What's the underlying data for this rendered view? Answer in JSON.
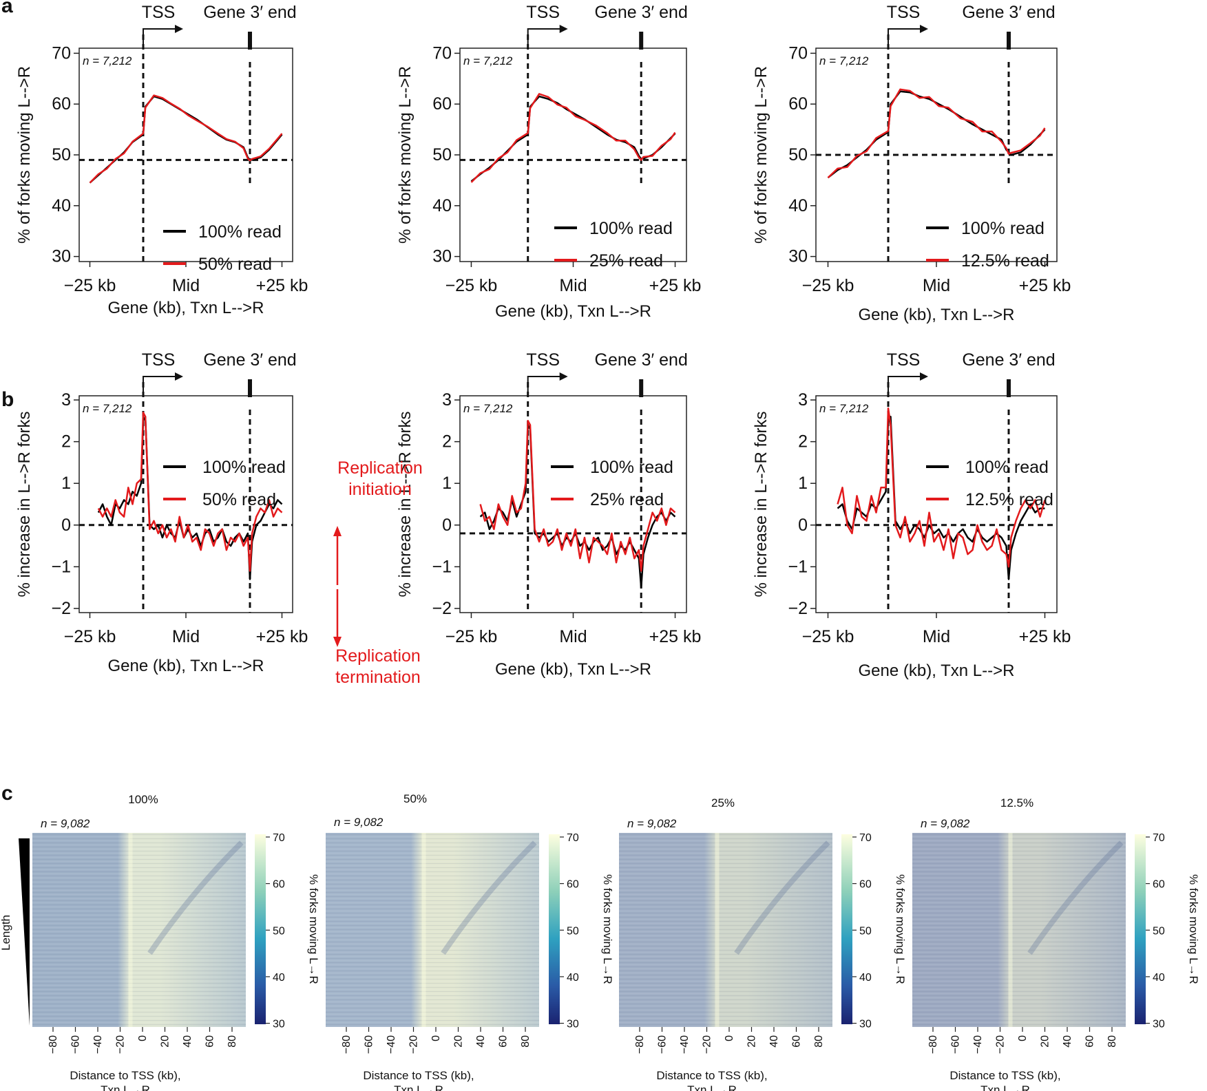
{
  "panels": {
    "a": "a",
    "b": "b",
    "c": "c"
  },
  "colors": {
    "full": "#000000",
    "sub": "#e31a1c",
    "annot": "#e31a1c"
  },
  "chart_data": [
    {
      "id": "a1",
      "type": "line",
      "xlabel": "Gene (kb), Txn L-->R",
      "ylabel": "% of forks moving L-->R",
      "ylim": [
        29,
        71
      ],
      "yticks": [
        30,
        40,
        50,
        60,
        70
      ],
      "xticks": [
        "−25 kb",
        "Mid",
        "+25 kb"
      ],
      "tss_label": "TSS",
      "end_label": "Gene 3′ end",
      "n_label": "n = 7,212",
      "hline": 49,
      "series": [
        {
          "name": "100% read",
          "x": [
            0,
            4,
            8,
            12,
            16,
            20,
            25,
            26,
            30,
            34,
            38,
            42,
            46,
            50,
            55,
            60,
            64,
            68,
            72,
            74,
            75,
            76,
            80,
            84,
            88,
            90
          ],
          "values": [
            44.5,
            46,
            47.5,
            49,
            50.5,
            52.5,
            54,
            59.5,
            61.5,
            61,
            60,
            59,
            58,
            57,
            55.5,
            54,
            53,
            52.5,
            51.5,
            49.5,
            49,
            49,
            49.5,
            51,
            53,
            54
          ]
        },
        {
          "name": "50% read",
          "x": [
            0,
            4,
            8,
            12,
            16,
            20,
            25,
            26,
            30,
            34,
            38,
            42,
            46,
            50,
            55,
            60,
            64,
            68,
            72,
            74,
            75,
            76,
            80,
            84,
            88,
            90
          ],
          "values": [
            44.5,
            46.2,
            47.3,
            49.2,
            50.3,
            52.6,
            54.2,
            59.3,
            61.7,
            61.2,
            60.1,
            59.1,
            57.8,
            56.8,
            55.6,
            54.2,
            53.1,
            52.6,
            51.3,
            49.3,
            48.9,
            49.2,
            49.7,
            51.2,
            53.2,
            54.2
          ]
        }
      ]
    },
    {
      "id": "a2",
      "type": "line",
      "xlabel": "Gene (kb), Txn L-->R",
      "ylabel": "% of forks moving L-->R",
      "ylim": [
        29,
        71
      ],
      "yticks": [
        30,
        40,
        50,
        60,
        70
      ],
      "xticks": [
        "−25 kb",
        "Mid",
        "+25 kb"
      ],
      "tss_label": "TSS",
      "end_label": "Gene 3′ end",
      "n_label": "n = 7,212",
      "hline": 49,
      "series": [
        {
          "name": "100% read",
          "x": [
            0,
            4,
            8,
            12,
            16,
            20,
            25,
            26,
            30,
            34,
            38,
            42,
            46,
            50,
            55,
            60,
            64,
            68,
            72,
            74,
            75,
            76,
            80,
            84,
            88,
            90
          ],
          "values": [
            44.8,
            46.2,
            47.5,
            49,
            50.8,
            52.6,
            54,
            59.5,
            61.5,
            61,
            60.2,
            59,
            58,
            57,
            55.5,
            54,
            53,
            52.5,
            51.5,
            49.8,
            49.2,
            49.3,
            50,
            51.5,
            53.3,
            54.2
          ]
        },
        {
          "name": "25% read",
          "x": [
            0,
            4,
            8,
            12,
            16,
            20,
            25,
            26,
            30,
            34,
            38,
            42,
            46,
            50,
            55,
            60,
            64,
            68,
            72,
            74,
            75,
            76,
            80,
            84,
            88,
            90
          ],
          "values": [
            44.6,
            46.4,
            47.2,
            49.3,
            50.5,
            52.9,
            54.3,
            59.2,
            62,
            61.4,
            59.9,
            59.3,
            57.6,
            56.9,
            55.8,
            54.3,
            52.8,
            52.8,
            51.1,
            49.5,
            49,
            49.6,
            49.8,
            51.8,
            53.1,
            54.4
          ]
        }
      ]
    },
    {
      "id": "a3",
      "type": "line",
      "xlabel": "Gene (kb), Txn L-->R",
      "ylabel": "% of forks moving L-->R",
      "ylim": [
        29,
        71
      ],
      "yticks": [
        30,
        40,
        50,
        60,
        70
      ],
      "xticks": [
        "−25 kb",
        "Mid",
        "+25 kb"
      ],
      "tss_label": "TSS",
      "end_label": "Gene 3′ end",
      "n_label": "n = 7,212",
      "hline": 50,
      "series": [
        {
          "name": "100% read",
          "x": [
            0,
            4,
            8,
            12,
            16,
            20,
            25,
            26,
            30,
            34,
            38,
            42,
            46,
            50,
            55,
            60,
            64,
            68,
            72,
            74,
            75,
            76,
            80,
            84,
            88,
            90
          ],
          "values": [
            45.5,
            47,
            48,
            49.5,
            51,
            53,
            54.5,
            60,
            62.5,
            62.3,
            61.5,
            61,
            60,
            59,
            57.5,
            56,
            55,
            54,
            53,
            51,
            50.5,
            50,
            50.5,
            52,
            54,
            55
          ]
        },
        {
          "name": "12.5% read",
          "x": [
            0,
            4,
            8,
            12,
            16,
            20,
            25,
            26,
            30,
            34,
            38,
            42,
            46,
            50,
            55,
            60,
            64,
            68,
            72,
            74,
            75,
            76,
            80,
            84,
            88,
            90
          ],
          "values": [
            45.5,
            47.3,
            47.6,
            49.8,
            50.7,
            53.3,
            54.7,
            59.6,
            62.9,
            62.6,
            61.2,
            61.4,
            59.6,
            59.3,
            57.2,
            56.5,
            54.6,
            54.6,
            52.6,
            51.3,
            50.2,
            50.4,
            50.9,
            52.3,
            53.8,
            55.3
          ]
        }
      ]
    },
    {
      "id": "b1",
      "type": "line",
      "xlabel": "Gene (kb), Txn L-->R",
      "ylabel": "% increase in L-->R forks",
      "ylim": [
        -2.1,
        3.1
      ],
      "yticks": [
        -2,
        -1,
        0,
        1,
        2,
        3
      ],
      "xticks": [
        "−25 kb",
        "Mid",
        "+25 kb"
      ],
      "tss_label": "TSS",
      "end_label": "Gene 3′ end",
      "n_label": "n = 7,212",
      "hline": 0,
      "series": [
        {
          "name": "100% read",
          "x": [
            4,
            6,
            8,
            10,
            12,
            14,
            16,
            18,
            20,
            22,
            24,
            25,
            26,
            28,
            30,
            32,
            34,
            36,
            38,
            40,
            42,
            44,
            46,
            48,
            50,
            52,
            54,
            56,
            58,
            60,
            62,
            64,
            66,
            68,
            70,
            72,
            74,
            75,
            76,
            78,
            80,
            82,
            84,
            86,
            88,
            90
          ],
          "values": [
            0.3,
            0.5,
            0.2,
            0.0,
            0.5,
            0.4,
            0.6,
            0.5,
            0.8,
            0.7,
            1.0,
            2.5,
            2.6,
            0.0,
            -0.1,
            0.0,
            -0.3,
            0.0,
            -0.2,
            -0.3,
            0.1,
            -0.3,
            -0.1,
            -0.3,
            -0.2,
            -0.5,
            -0.2,
            -0.1,
            -0.4,
            -0.3,
            -0.1,
            -0.4,
            -0.5,
            -0.3,
            -0.2,
            -0.4,
            -0.2,
            -1.3,
            -0.4,
            0.0,
            0.1,
            0.3,
            0.5,
            0.4,
            0.6,
            0.5
          ]
        },
        {
          "name": "50% read",
          "x": [
            4,
            6,
            8,
            10,
            12,
            14,
            16,
            18,
            20,
            22,
            24,
            25,
            26,
            28,
            30,
            32,
            34,
            36,
            38,
            40,
            42,
            44,
            46,
            48,
            50,
            52,
            54,
            56,
            58,
            60,
            62,
            64,
            66,
            68,
            70,
            72,
            74,
            75,
            76,
            78,
            80,
            82,
            84,
            86,
            88,
            90
          ],
          "values": [
            0.4,
            0.2,
            0.4,
            0.2,
            0.6,
            0.3,
            0.2,
            0.9,
            0.5,
            1.0,
            1.1,
            2.7,
            2.6,
            -0.1,
            0.1,
            -0.2,
            0.0,
            -0.3,
            -0.1,
            -0.4,
            0.2,
            -0.3,
            0.0,
            -0.4,
            -0.3,
            -0.6,
            -0.1,
            -0.2,
            -0.5,
            -0.2,
            -0.1,
            -0.6,
            -0.3,
            -0.4,
            -0.2,
            -0.5,
            -0.3,
            -1.1,
            -0.2,
            0.2,
            0.4,
            0.3,
            0.6,
            0.2,
            0.4,
            0.3
          ]
        }
      ]
    },
    {
      "id": "b2",
      "type": "line",
      "xlabel": "Gene (kb), Txn L-->R",
      "ylabel": "% increase in L-->R forks",
      "ylim": [
        -2.1,
        3.1
      ],
      "yticks": [
        -2,
        -1,
        0,
        1,
        2,
        3
      ],
      "xticks": [
        "−25 kb",
        "Mid",
        "+25 kb"
      ],
      "tss_label": "TSS",
      "end_label": "Gene 3′ end",
      "n_label": "n = 7,212",
      "hline": -0.2,
      "series": [
        {
          "name": "100% read",
          "x": [
            4,
            6,
            8,
            10,
            12,
            14,
            16,
            18,
            20,
            22,
            24,
            25,
            26,
            28,
            30,
            32,
            34,
            36,
            38,
            40,
            42,
            44,
            46,
            48,
            50,
            52,
            54,
            56,
            58,
            60,
            62,
            64,
            66,
            68,
            70,
            72,
            74,
            75,
            76,
            78,
            80,
            82,
            84,
            86,
            88,
            90
          ],
          "values": [
            0.2,
            0.3,
            -0.1,
            0.1,
            0.4,
            0.3,
            0.1,
            0.6,
            0.2,
            0.5,
            0.8,
            2.4,
            2.3,
            -0.2,
            -0.3,
            -0.2,
            -0.4,
            -0.3,
            -0.2,
            -0.5,
            -0.3,
            -0.4,
            -0.2,
            -0.5,
            -0.4,
            -0.6,
            -0.4,
            -0.3,
            -0.6,
            -0.5,
            -0.3,
            -0.7,
            -0.5,
            -0.6,
            -0.4,
            -0.6,
            -0.8,
            -1.5,
            -0.7,
            -0.3,
            0.0,
            0.2,
            0.3,
            0.1,
            0.3,
            0.2
          ]
        },
        {
          "name": "25% read",
          "x": [
            4,
            6,
            8,
            10,
            12,
            14,
            16,
            18,
            20,
            22,
            24,
            25,
            26,
            28,
            30,
            32,
            34,
            36,
            38,
            40,
            42,
            44,
            46,
            48,
            50,
            52,
            54,
            56,
            58,
            60,
            62,
            64,
            66,
            68,
            70,
            72,
            74,
            75,
            76,
            78,
            80,
            82,
            84,
            86,
            88,
            90
          ],
          "values": [
            0.5,
            0.1,
            0.2,
            -0.1,
            0.5,
            0.2,
            0.0,
            0.7,
            0.3,
            0.4,
            1.0,
            2.5,
            2.4,
            -0.1,
            -0.4,
            -0.1,
            -0.5,
            -0.4,
            -0.1,
            -0.6,
            -0.2,
            -0.5,
            -0.1,
            -0.8,
            -0.3,
            -0.9,
            -0.3,
            -0.4,
            -0.5,
            -0.7,
            -0.2,
            -0.9,
            -0.4,
            -0.7,
            -0.3,
            -0.8,
            -0.6,
            -1.1,
            -0.5,
            -0.1,
            0.3,
            0.1,
            0.4,
            0.0,
            0.4,
            0.3
          ]
        }
      ]
    },
    {
      "id": "b3",
      "type": "line",
      "xlabel": "Gene (kb), Txn L-->R",
      "ylabel": "% increase in L-->R forks",
      "ylim": [
        -2.1,
        3.1
      ],
      "yticks": [
        -2,
        -1,
        0,
        1,
        2,
        3
      ],
      "xticks": [
        "−25 kb",
        "Mid",
        "+25 kb"
      ],
      "tss_label": "TSS",
      "end_label": "Gene 3′ end",
      "n_label": "n = 7,212",
      "hline": 0,
      "series": [
        {
          "name": "100% read",
          "x": [
            4,
            6,
            8,
            10,
            12,
            14,
            16,
            18,
            20,
            22,
            24,
            25,
            26,
            28,
            30,
            32,
            34,
            36,
            38,
            40,
            42,
            44,
            46,
            48,
            50,
            52,
            54,
            56,
            58,
            60,
            62,
            64,
            66,
            68,
            70,
            72,
            74,
            75,
            76,
            78,
            80,
            82,
            84,
            86,
            88,
            90
          ],
          "values": [
            0.4,
            0.5,
            0.1,
            -0.1,
            0.4,
            0.3,
            0.2,
            0.5,
            0.4,
            0.6,
            0.8,
            2.5,
            2.6,
            0.1,
            -0.1,
            0.1,
            -0.2,
            0.0,
            -0.1,
            -0.3,
            0.0,
            -0.2,
            -0.1,
            -0.3,
            -0.2,
            -0.4,
            -0.2,
            -0.1,
            -0.3,
            -0.4,
            -0.1,
            -0.3,
            -0.4,
            -0.3,
            -0.2,
            -0.3,
            -0.5,
            -1.3,
            -0.6,
            -0.2,
            0.1,
            0.3,
            0.5,
            0.3,
            0.4,
            0.4
          ]
        },
        {
          "name": "12.5% read",
          "x": [
            4,
            6,
            8,
            10,
            12,
            14,
            16,
            18,
            20,
            22,
            24,
            25,
            26,
            28,
            30,
            32,
            34,
            36,
            38,
            40,
            42,
            44,
            46,
            48,
            50,
            52,
            54,
            56,
            58,
            60,
            62,
            64,
            66,
            68,
            70,
            72,
            74,
            75,
            76,
            78,
            80,
            82,
            84,
            86,
            88,
            90
          ],
          "values": [
            0.5,
            0.9,
            0.0,
            -0.2,
            0.7,
            0.2,
            0.1,
            0.7,
            0.3,
            0.9,
            0.9,
            2.8,
            2.4,
            0.0,
            -0.3,
            0.2,
            -0.4,
            -0.2,
            0.1,
            -0.5,
            0.3,
            -0.4,
            -0.2,
            -0.6,
            -0.1,
            -0.8,
            -0.2,
            -0.3,
            -0.7,
            -0.6,
            0.0,
            -0.4,
            -0.6,
            -0.5,
            -0.1,
            -0.6,
            -0.7,
            -1.0,
            -0.3,
            0.1,
            0.4,
            0.6,
            0.4,
            0.6,
            0.2,
            0.6
          ]
        }
      ]
    },
    {
      "id": "c",
      "type": "heatmap",
      "n_label": "n = 9,082",
      "length_label": "Length",
      "xlabel_line1": "Distance to TSS (kb),",
      "xlabel_line2": "Txn L→R",
      "colorbar_label": "% forks moving L→R",
      "colorbar_range": [
        30,
        70
      ],
      "colorbar_ticks": [
        "70",
        "60",
        "50",
        "40",
        "30"
      ],
      "x_ticks": [
        "−80",
        "−60",
        "−40",
        "−20",
        "0",
        "20",
        "40",
        "60",
        "80"
      ],
      "x_range": [
        -100,
        100
      ],
      "panels": [
        {
          "title": "100%"
        },
        {
          "title": "50%"
        },
        {
          "title": "25%"
        },
        {
          "title": "12.5%"
        }
      ]
    }
  ],
  "annotations": {
    "initiation_line1": "Replication",
    "initiation_line2": "initiation",
    "termination_line1": "Replication",
    "termination_line2": "termination"
  }
}
